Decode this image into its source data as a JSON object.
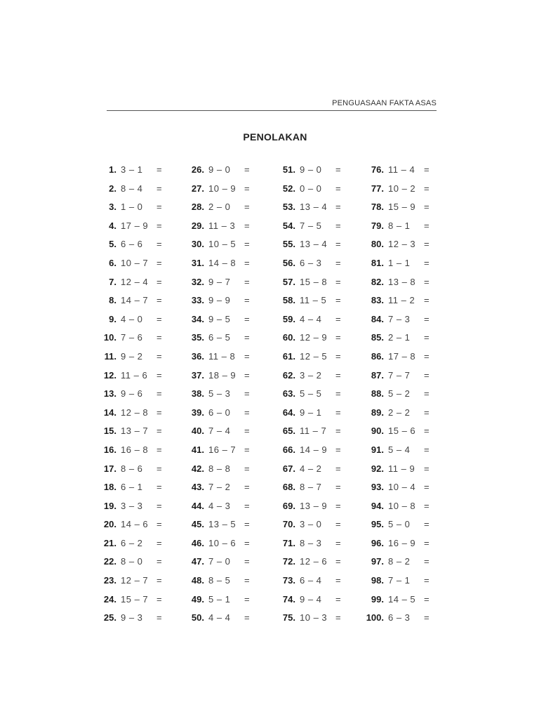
{
  "header": {
    "running_title": "PENGUASAAN FAKTA ASAS"
  },
  "title": "PENOLAKAN",
  "equals_sign": "=",
  "columns": [
    [
      {
        "n": "1.",
        "expr": "3 – 1"
      },
      {
        "n": "2.",
        "expr": "8 – 4"
      },
      {
        "n": "3.",
        "expr": "1 – 0"
      },
      {
        "n": "4.",
        "expr": "17 – 9"
      },
      {
        "n": "5.",
        "expr": "6 – 6"
      },
      {
        "n": "6.",
        "expr": "10 – 7"
      },
      {
        "n": "7.",
        "expr": "12 – 4"
      },
      {
        "n": "8.",
        "expr": "14 – 7"
      },
      {
        "n": "9.",
        "expr": "4 – 0"
      },
      {
        "n": "10.",
        "expr": "7 – 6"
      },
      {
        "n": "11.",
        "expr": "9 – 2"
      },
      {
        "n": "12.",
        "expr": "11 – 6"
      },
      {
        "n": "13.",
        "expr": "9 – 6"
      },
      {
        "n": "14.",
        "expr": "12 – 8"
      },
      {
        "n": "15.",
        "expr": "13 – 7"
      },
      {
        "n": "16.",
        "expr": "16 – 8"
      },
      {
        "n": "17.",
        "expr": "8 – 6"
      },
      {
        "n": "18.",
        "expr": "6 – 1"
      },
      {
        "n": "19.",
        "expr": "3 – 3"
      },
      {
        "n": "20.",
        "expr": "14 – 6"
      },
      {
        "n": "21.",
        "expr": "6 – 2"
      },
      {
        "n": "22.",
        "expr": "8 – 0"
      },
      {
        "n": "23.",
        "expr": "12 – 7"
      },
      {
        "n": "24.",
        "expr": "15 – 7"
      },
      {
        "n": "25.",
        "expr": "9 – 3"
      }
    ],
    [
      {
        "n": "26.",
        "expr": "9 – 0"
      },
      {
        "n": "27.",
        "expr": "10 – 9"
      },
      {
        "n": "28.",
        "expr": "2 – 0"
      },
      {
        "n": "29.",
        "expr": "11 – 3"
      },
      {
        "n": "30.",
        "expr": "10 – 5"
      },
      {
        "n": "31.",
        "expr": "14 – 8"
      },
      {
        "n": "32.",
        "expr": "9 – 7"
      },
      {
        "n": "33.",
        "expr": "9 – 9"
      },
      {
        "n": "34.",
        "expr": "9 – 5"
      },
      {
        "n": "35.",
        "expr": "6 – 5"
      },
      {
        "n": "36.",
        "expr": "11 – 8"
      },
      {
        "n": "37.",
        "expr": "18 – 9"
      },
      {
        "n": "38.",
        "expr": "5 – 3"
      },
      {
        "n": "39.",
        "expr": "6 – 0"
      },
      {
        "n": "40.",
        "expr": "7 – 4"
      },
      {
        "n": "41.",
        "expr": "16 – 7"
      },
      {
        "n": "42.",
        "expr": "8 – 8"
      },
      {
        "n": "43.",
        "expr": "7 – 2"
      },
      {
        "n": "44.",
        "expr": "4 – 3"
      },
      {
        "n": "45.",
        "expr": "13 – 5"
      },
      {
        "n": "46.",
        "expr": "10 – 6"
      },
      {
        "n": "47.",
        "expr": "7 – 0"
      },
      {
        "n": "48.",
        "expr": "8 – 5"
      },
      {
        "n": "49.",
        "expr": "5 – 1"
      },
      {
        "n": "50.",
        "expr": "4 – 4"
      }
    ],
    [
      {
        "n": "51.",
        "expr": "9 – 0"
      },
      {
        "n": "52.",
        "expr": "0 – 0"
      },
      {
        "n": "53.",
        "expr": "13 – 4"
      },
      {
        "n": "54.",
        "expr": "7 – 5"
      },
      {
        "n": "55.",
        "expr": "13 – 4"
      },
      {
        "n": "56.",
        "expr": "6 – 3"
      },
      {
        "n": "57.",
        "expr": "15 – 8"
      },
      {
        "n": "58.",
        "expr": "11 – 5"
      },
      {
        "n": "59.",
        "expr": "4 – 4"
      },
      {
        "n": "60.",
        "expr": "12 – 9"
      },
      {
        "n": "61.",
        "expr": "12 – 5"
      },
      {
        "n": "62.",
        "expr": "3 – 2"
      },
      {
        "n": "63.",
        "expr": "5 – 5"
      },
      {
        "n": "64.",
        "expr": "9 – 1"
      },
      {
        "n": "65.",
        "expr": "11 – 7"
      },
      {
        "n": "66.",
        "expr": "14 – 9"
      },
      {
        "n": "67.",
        "expr": "4 – 2"
      },
      {
        "n": "68.",
        "expr": "8 – 7"
      },
      {
        "n": "69.",
        "expr": "13 – 9"
      },
      {
        "n": "70.",
        "expr": "3 – 0"
      },
      {
        "n": "71.",
        "expr": "8 – 3"
      },
      {
        "n": "72.",
        "expr": "12 – 6"
      },
      {
        "n": "73.",
        "expr": "6 – 4"
      },
      {
        "n": "74.",
        "expr": "9 – 4"
      },
      {
        "n": "75.",
        "expr": "10 – 3"
      }
    ],
    [
      {
        "n": "76.",
        "expr": "11 – 4"
      },
      {
        "n": "77.",
        "expr": "10 – 2"
      },
      {
        "n": "78.",
        "expr": "15 – 9"
      },
      {
        "n": "79.",
        "expr": "8 – 1"
      },
      {
        "n": "80.",
        "expr": "12 – 3"
      },
      {
        "n": "81.",
        "expr": "1 – 1"
      },
      {
        "n": "82.",
        "expr": "13 – 8"
      },
      {
        "n": "83.",
        "expr": "11 – 2"
      },
      {
        "n": "84.",
        "expr": "7 – 3"
      },
      {
        "n": "85.",
        "expr": "2 – 1"
      },
      {
        "n": "86.",
        "expr": "17 – 8"
      },
      {
        "n": "87.",
        "expr": "7 – 7"
      },
      {
        "n": "88.",
        "expr": "5 – 2"
      },
      {
        "n": "89.",
        "expr": "2 – 2"
      },
      {
        "n": "90.",
        "expr": "15 – 6"
      },
      {
        "n": "91.",
        "expr": "5 – 4"
      },
      {
        "n": "92.",
        "expr": "11 – 9"
      },
      {
        "n": "93.",
        "expr": "10 – 4"
      },
      {
        "n": "94.",
        "expr": "10 – 8"
      },
      {
        "n": "95.",
        "expr": "5 – 0"
      },
      {
        "n": "96.",
        "expr": "16 – 9"
      },
      {
        "n": "97.",
        "expr": "8 – 2"
      },
      {
        "n": "98.",
        "expr": "7 – 1"
      },
      {
        "n": "99.",
        "expr": "14 – 5"
      },
      {
        "n": "100.",
        "expr": "6 – 3"
      }
    ]
  ]
}
